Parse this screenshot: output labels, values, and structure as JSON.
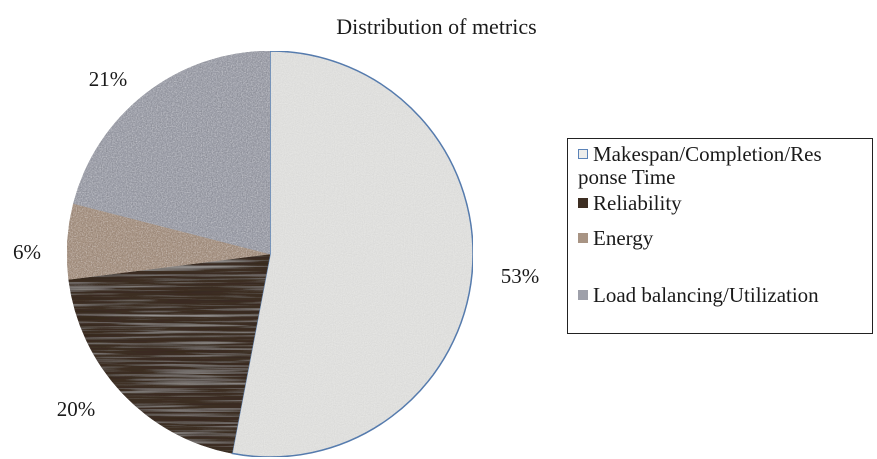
{
  "chart_data": {
    "type": "pie",
    "title": "Distribution of metrics",
    "slices": [
      {
        "label": "Makespan/Completion/Response Time",
        "legend_lines": [
          "Makespan/Completion/Res",
          "ponse Time"
        ],
        "value": 53,
        "display": "53%",
        "color": "#ededeb",
        "stroke": "#5b83b8"
      },
      {
        "label": "Reliability",
        "legend_lines": [
          "Reliability"
        ],
        "value": 20,
        "display": "20%",
        "color": "#3d2e22",
        "stroke": "#3d2e22"
      },
      {
        "label": "Energy",
        "legend_lines": [
          "Energy"
        ],
        "value": 6,
        "display": "6%",
        "color": "#a89484",
        "stroke": "#a89484"
      },
      {
        "label": "Load balancing/Utilization",
        "legend_lines": [
          "Load balancing/Utilization"
        ],
        "value": 21,
        "display": "21%",
        "color": "#9ea0aa",
        "stroke": "#9ea0aa"
      }
    ],
    "legend_position": "right"
  }
}
